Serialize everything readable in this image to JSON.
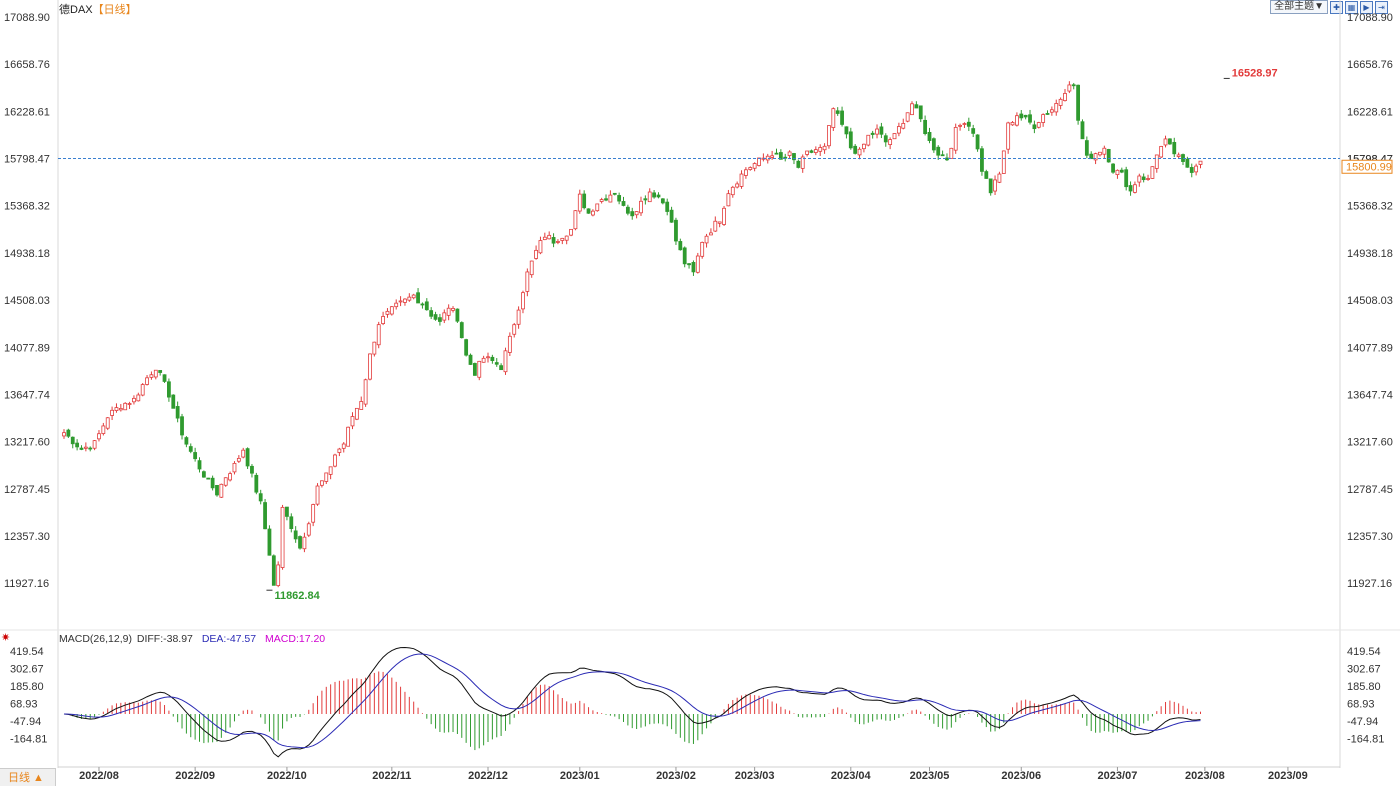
{
  "header": {
    "symbol": "德DAX",
    "period": "【日线】",
    "theme_button": "全部主题▼",
    "icons": [
      "zoom-in-icon",
      "layout-icon",
      "play-icon",
      "expand-icon"
    ]
  },
  "bottom_bar": {
    "period_selector": "日线 ▲"
  },
  "colors": {
    "up": "#e23b3b",
    "down": "#2f9a2f",
    "diff": "#111111",
    "dea": "#2b2bb5",
    "macd_label": "#d000d0",
    "ref_line": "#3a7fd0"
  },
  "chart_data": [
    {
      "type": "candlestick",
      "title": "德DAX 【日线】",
      "y_ticks": [
        17088.9,
        16658.76,
        16228.61,
        15798.47,
        15368.32,
        14938.18,
        14508.03,
        14077.89,
        13647.74,
        13217.6,
        12787.45,
        12357.3,
        11927.16
      ],
      "y_tick_labels": [
        "17088.90",
        "16658.76",
        "16228.61",
        "15798.47",
        "15368.32",
        "14938.18",
        "14508.03",
        "14077.89",
        "13647.74",
        "13217.60",
        "12787.45",
        "12357.30",
        "11927.16"
      ],
      "ylim": [
        11500,
        17088.9
      ],
      "x_labels": [
        "2022/08",
        "2022/09",
        "2022/10",
        "2022/11",
        "2022/12",
        "2023/01",
        "2023/02",
        "2023/03",
        "2023/04",
        "2023/05",
        "2023/06",
        "2023/07",
        "2023/08",
        "2023/09"
      ],
      "x_label_index": [
        8,
        30,
        51,
        75,
        97,
        118,
        140,
        158,
        180,
        198,
        219,
        241,
        261,
        280
      ],
      "reference_line": {
        "value": 15798.47,
        "label": "15798.47"
      },
      "last_price": {
        "value": 15800.99,
        "label": "15800.99"
      },
      "max_annotation": {
        "value": 16528.97,
        "label": "16528.97",
        "index": 266
      },
      "min_annotation": {
        "value": 11862.84,
        "label": "11862.84",
        "index": 47
      },
      "close_keypoints": [
        [
          0,
          13300
        ],
        [
          4,
          13150
        ],
        [
          7,
          13200
        ],
        [
          10,
          13450
        ],
        [
          13,
          13550
        ],
        [
          16,
          13600
        ],
        [
          19,
          13800
        ],
        [
          21,
          13900
        ],
        [
          24,
          13650
        ],
        [
          26,
          13400
        ],
        [
          28,
          13200
        ],
        [
          30,
          13050
        ],
        [
          33,
          12850
        ],
        [
          35,
          12750
        ],
        [
          37,
          12900
        ],
        [
          39,
          13000
        ],
        [
          41,
          13150
        ],
        [
          43,
          12900
        ],
        [
          45,
          12650
        ],
        [
          47,
          12200
        ],
        [
          48,
          11900
        ],
        [
          49,
          12100
        ],
        [
          50,
          12600
        ],
        [
          52,
          12450
        ],
        [
          54,
          12250
        ],
        [
          56,
          12500
        ],
        [
          58,
          12800
        ],
        [
          60,
          12900
        ],
        [
          62,
          13100
        ],
        [
          64,
          13200
        ],
        [
          66,
          13450
        ],
        [
          68,
          13600
        ],
        [
          70,
          14000
        ],
        [
          72,
          14300
        ],
        [
          74,
          14380
        ],
        [
          76,
          14450
        ],
        [
          78,
          14500
        ],
        [
          80,
          14550
        ],
        [
          82,
          14480
        ],
        [
          84,
          14380
        ],
        [
          86,
          14300
        ],
        [
          88,
          14450
        ],
        [
          90,
          14350
        ],
        [
          92,
          14000
        ],
        [
          94,
          13850
        ],
        [
          96,
          13980
        ],
        [
          98,
          13950
        ],
        [
          100,
          13900
        ],
        [
          102,
          14150
        ],
        [
          104,
          14450
        ],
        [
          106,
          14750
        ],
        [
          108,
          14950
        ],
        [
          110,
          15100
        ],
        [
          112,
          15050
        ],
        [
          114,
          15100
        ],
        [
          116,
          15150
        ],
        [
          118,
          15450
        ],
        [
          120,
          15300
        ],
        [
          122,
          15400
        ],
        [
          124,
          15450
        ],
        [
          126,
          15500
        ],
        [
          128,
          15350
        ],
        [
          130,
          15300
        ],
        [
          132,
          15400
        ],
        [
          134,
          15500
        ],
        [
          136,
          15450
        ],
        [
          138,
          15350
        ],
        [
          140,
          15050
        ],
        [
          142,
          14850
        ],
        [
          144,
          14750
        ],
        [
          146,
          15050
        ],
        [
          148,
          15150
        ],
        [
          150,
          15250
        ],
        [
          152,
          15500
        ],
        [
          154,
          15600
        ],
        [
          156,
          15700
        ],
        [
          158,
          15750
        ],
        [
          160,
          15800
        ],
        [
          162,
          15850
        ],
        [
          164,
          15780
        ],
        [
          166,
          15830
        ],
        [
          168,
          15720
        ],
        [
          170,
          15840
        ],
        [
          172,
          15880
        ],
        [
          174,
          15890
        ],
        [
          176,
          16250
        ],
        [
          178,
          16100
        ],
        [
          180,
          15900
        ],
        [
          182,
          15850
        ],
        [
          184,
          16000
        ],
        [
          186,
          16050
        ],
        [
          188,
          15950
        ],
        [
          190,
          16000
        ],
        [
          192,
          16150
        ],
        [
          194,
          16300
        ],
        [
          196,
          16150
        ],
        [
          198,
          15950
        ],
        [
          200,
          15850
        ],
        [
          202,
          15800
        ],
        [
          204,
          16050
        ],
        [
          206,
          16150
        ],
        [
          208,
          16050
        ],
        [
          210,
          15700
        ],
        [
          212,
          15500
        ],
        [
          214,
          15650
        ],
        [
          216,
          16100
        ],
        [
          218,
          16200
        ],
        [
          220,
          16150
        ],
        [
          222,
          16100
        ],
        [
          224,
          16200
        ],
        [
          226,
          16250
        ],
        [
          228,
          16350
        ],
        [
          230,
          16500
        ],
        [
          231,
          16450
        ],
        [
          232,
          16150
        ],
        [
          234,
          15800
        ],
        [
          236,
          15850
        ],
        [
          238,
          15900
        ],
        [
          240,
          15700
        ],
        [
          242,
          15650
        ],
        [
          244,
          15500
        ],
        [
          246,
          15650
        ],
        [
          248,
          15600
        ],
        [
          250,
          15850
        ],
        [
          252,
          15950
        ],
        [
          254,
          15850
        ],
        [
          256,
          15750
        ],
        [
          258,
          15700
        ],
        [
          260,
          15800
        ]
      ]
    },
    {
      "type": "line",
      "title": "MACD(26,12,9)",
      "indicator_label": "MACD(26,12,9)",
      "diff_label": "DIFF:-38.97",
      "dea_label": "DEA:-47.57",
      "macd_label": "MACD:17.20",
      "series": [
        {
          "name": "DIFF",
          "value": -38.97
        },
        {
          "name": "DEA",
          "value": -47.57
        },
        {
          "name": "MACD",
          "value": 17.2
        }
      ],
      "y_ticks": [
        419.54,
        302.67,
        185.8,
        68.93,
        -47.94,
        -164.81
      ],
      "y_tick_labels": [
        "419.54",
        "302.67",
        "185.80",
        "68.93",
        "-47.94",
        "-164.81"
      ],
      "ylim": [
        -240,
        440
      ]
    }
  ]
}
